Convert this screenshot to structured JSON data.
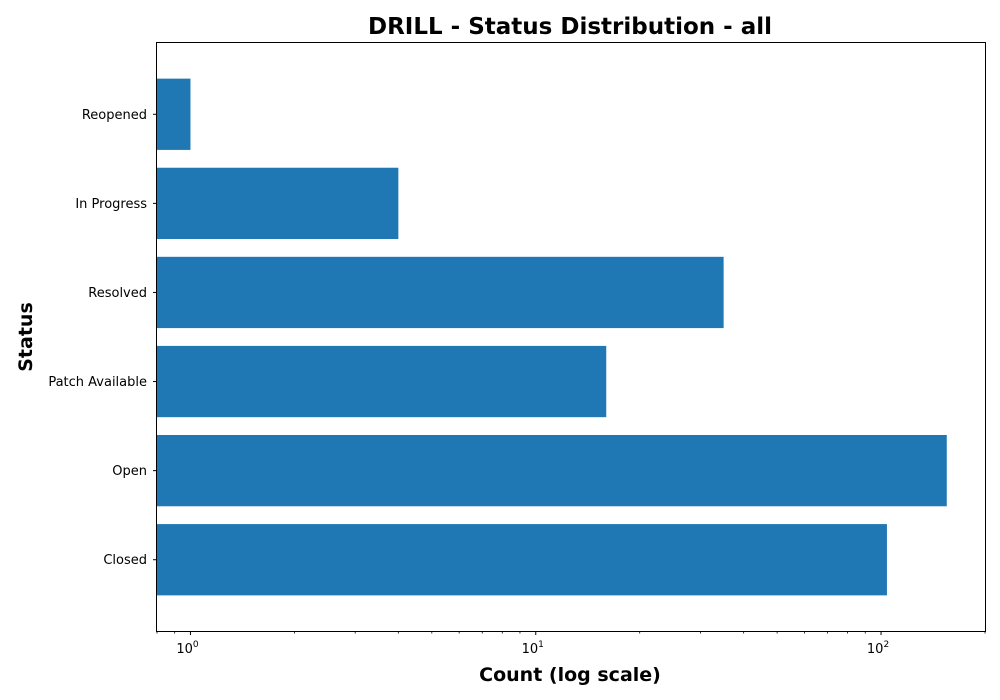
{
  "chart_data": {
    "type": "bar",
    "orientation": "horizontal",
    "title": "DRILL - Status Distribution - all",
    "xlabel": "Count (log scale)",
    "ylabel": "Status",
    "x_scale": "log",
    "xlim": [
      0.8,
      200
    ],
    "x_ticks": [
      {
        "base": "10",
        "exp": "0"
      },
      {
        "base": "10",
        "exp": "1"
      },
      {
        "base": "10",
        "exp": "2"
      }
    ],
    "categories": [
      "Closed",
      "Open",
      "Patch Available",
      "Resolved",
      "In Progress",
      "Reopened"
    ],
    "values": [
      104,
      155,
      16,
      35,
      4,
      1
    ],
    "bar_color": "#1f77b4",
    "grid": false
  }
}
